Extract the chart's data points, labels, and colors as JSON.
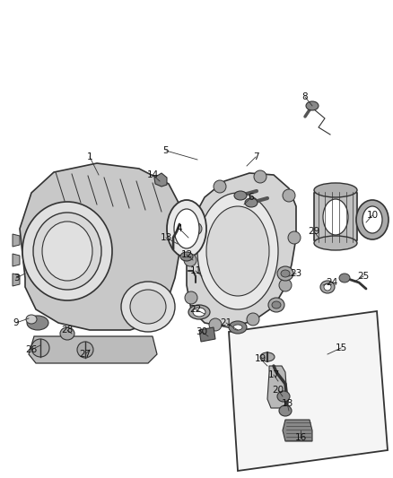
{
  "bg_color": "#ffffff",
  "fig_width": 4.38,
  "fig_height": 5.33,
  "dpi": 100,
  "line_color": "#333333",
  "text_color": "#111111",
  "font_size": 7.5,
  "labels": [
    [
      "1",
      100,
      175,
      110,
      195
    ],
    [
      "3",
      18,
      310,
      28,
      305
    ],
    [
      "4",
      200,
      255,
      210,
      265
    ],
    [
      "5",
      185,
      168,
      220,
      178
    ],
    [
      "6",
      280,
      220,
      272,
      228
    ],
    [
      "7",
      285,
      175,
      275,
      185
    ],
    [
      "8",
      340,
      108,
      348,
      118
    ],
    [
      "9",
      18,
      360,
      32,
      355
    ],
    [
      "10",
      415,
      240,
      408,
      248
    ],
    [
      "11",
      218,
      302,
      225,
      308
    ],
    [
      "12",
      208,
      284,
      215,
      290
    ],
    [
      "13",
      185,
      265,
      198,
      272
    ],
    [
      "14",
      170,
      195,
      178,
      202
    ],
    [
      "15",
      380,
      388,
      365,
      395
    ],
    [
      "16",
      335,
      488,
      335,
      480
    ],
    [
      "17",
      305,
      418,
      310,
      425
    ],
    [
      "18",
      320,
      450,
      322,
      458
    ],
    [
      "19",
      290,
      400,
      298,
      408
    ],
    [
      "20",
      310,
      435,
      315,
      442
    ],
    [
      "21",
      252,
      360,
      265,
      368
    ],
    [
      "22",
      218,
      345,
      228,
      350
    ],
    [
      "23",
      330,
      305,
      322,
      308
    ],
    [
      "24",
      370,
      315,
      360,
      318
    ],
    [
      "25",
      405,
      308,
      395,
      314
    ],
    [
      "26",
      35,
      390,
      45,
      385
    ],
    [
      "27",
      95,
      395,
      100,
      390
    ],
    [
      "28",
      75,
      368,
      80,
      372
    ],
    [
      "29",
      350,
      258,
      355,
      265
    ],
    [
      "30",
      225,
      370,
      232,
      375
    ]
  ]
}
